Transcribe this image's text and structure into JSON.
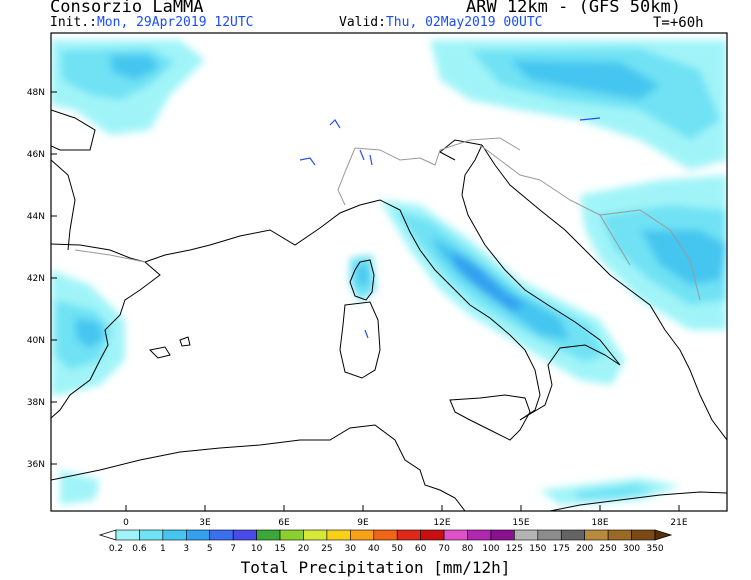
{
  "header": {
    "source": "Consorzio LaMMA",
    "model": "ARW 12km - (GFS 50km)",
    "init_label": "Init.:",
    "init_value": "Mon, 29Apr2019 12UTC",
    "valid_label": "Valid:",
    "valid_value": "Thu, 02May2019 00UTC",
    "time_step": "T=+60h"
  },
  "map": {
    "lon_labels": [
      "0",
      "3E",
      "6E",
      "9E",
      "12E",
      "15E",
      "18E",
      "21E"
    ],
    "lat_labels": [
      "48N",
      "46N",
      "44N",
      "42N",
      "40N",
      "38N",
      "36N"
    ],
    "lon_values": [
      0,
      3,
      6,
      9,
      12,
      15,
      18,
      21
    ],
    "lat_values": [
      48,
      46,
      44,
      42,
      40,
      38,
      36
    ]
  },
  "colorbar": {
    "title": "Total Precipitation [mm/12h]",
    "labels": [
      "0.2",
      "0.6",
      "1",
      "3",
      "5",
      "7",
      "10",
      "15",
      "20",
      "25",
      "30",
      "40",
      "50",
      "60",
      "70",
      "80",
      "100",
      "125",
      "150",
      "175",
      "200",
      "250",
      "300",
      "350"
    ],
    "colors": [
      "#a0f4f8",
      "#6fe2f4",
      "#45c6f0",
      "#33a0f0",
      "#3a70f0",
      "#4a4ae8",
      "#3aa838",
      "#8cd030",
      "#d8e838",
      "#f8d018",
      "#f8a018",
      "#f06418",
      "#e02818",
      "#c81010",
      "#e050c8",
      "#b028b0",
      "#8a1090",
      "#b4b4b4",
      "#8c8c8c",
      "#646464",
      "#b88a40",
      "#9a6a24",
      "#7a4a14",
      "#5a300a"
    ],
    "over_color": "#5a300a",
    "under_color": "#ffffff"
  }
}
